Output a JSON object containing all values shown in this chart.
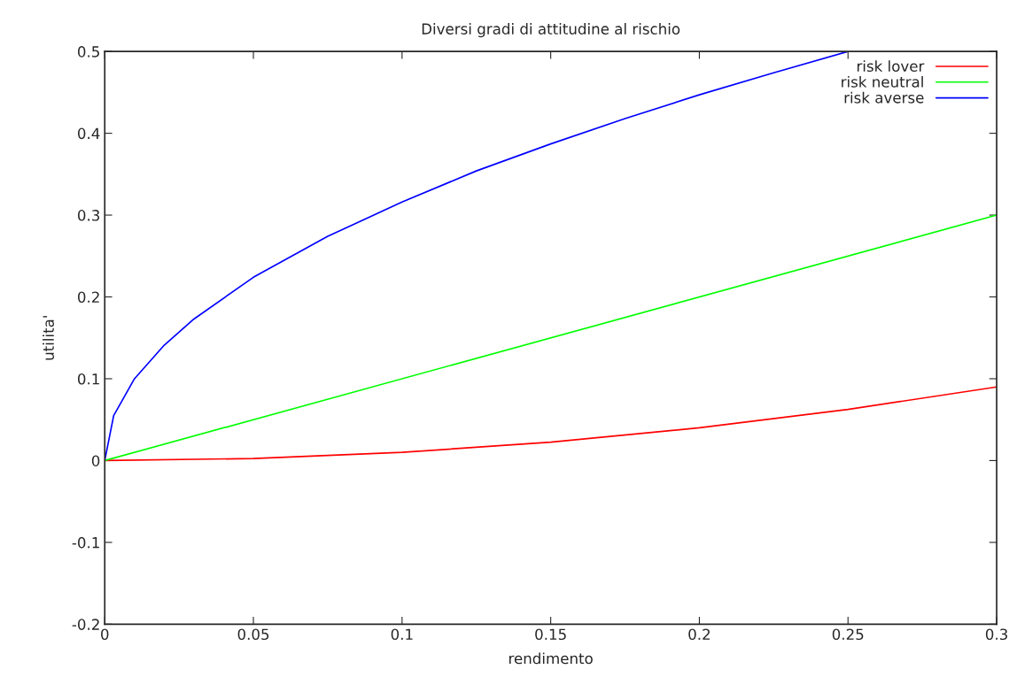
{
  "chart_data": {
    "type": "line",
    "title": "Diversi gradi di attitudine al rischio",
    "xlabel": "rendimento",
    "ylabel": "utilita'",
    "xlim": [
      0,
      0.3
    ],
    "ylim": [
      -0.2,
      0.5
    ],
    "xticks": [
      0,
      0.05,
      0.1,
      0.15,
      0.2,
      0.25,
      0.3
    ],
    "yticks": [
      -0.2,
      -0.1,
      0,
      0.1,
      0.2,
      0.3,
      0.4,
      0.5
    ],
    "grid": false,
    "legend": "top right",
    "marker": "none",
    "line_style": "solid",
    "series": [
      {
        "name": "risk lover",
        "color": "#ff0000",
        "x": [
          0,
          0.05,
          0.1,
          0.15,
          0.2,
          0.25,
          0.3
        ],
        "values": [
          0,
          0.0025,
          0.01,
          0.0225,
          0.04,
          0.0625,
          0.09
        ]
      },
      {
        "name": "risk neutral",
        "color": "#00ff00",
        "x": [
          0,
          0.3
        ],
        "values": [
          0,
          0.3
        ]
      },
      {
        "name": "risk averse",
        "color": "#0000ff",
        "x": [
          0,
          0.003,
          0.01,
          0.02,
          0.03,
          0.05,
          0.075,
          0.1,
          0.125,
          0.15,
          0.175,
          0.2,
          0.225,
          0.25
        ],
        "values": [
          0,
          0.055,
          0.1,
          0.141,
          0.173,
          0.224,
          0.274,
          0.316,
          0.354,
          0.387,
          0.418,
          0.447,
          0.474,
          0.5
        ]
      }
    ]
  }
}
